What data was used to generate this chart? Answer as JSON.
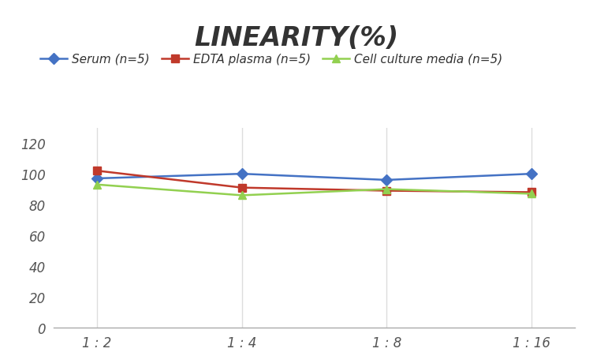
{
  "title": "LINEARITY(%)",
  "x_labels": [
    "1 : 2",
    "1 : 4",
    "1 : 8",
    "1 : 16"
  ],
  "x_positions": [
    0,
    1,
    2,
    3
  ],
  "series": [
    {
      "label": "Serum (n=5)",
      "values": [
        97,
        100,
        96,
        100
      ],
      "color": "#4472C4",
      "marker": "D",
      "markersize": 7,
      "linewidth": 1.8
    },
    {
      "label": "EDTA plasma (n=5)",
      "values": [
        102,
        91,
        89,
        88
      ],
      "color": "#C0392B",
      "marker": "s",
      "markersize": 7,
      "linewidth": 1.8
    },
    {
      "label": "Cell culture media (n=5)",
      "values": [
        93,
        86,
        90,
        87
      ],
      "color": "#92D050",
      "marker": "^",
      "markersize": 7,
      "linewidth": 1.8
    }
  ],
  "ylim": [
    0,
    130
  ],
  "yticks": [
    0,
    20,
    40,
    60,
    80,
    100,
    120
  ],
  "grid_color": "#DDDDDD",
  "background_color": "#FFFFFF",
  "title_fontsize": 24,
  "legend_fontsize": 11,
  "tick_fontsize": 12
}
